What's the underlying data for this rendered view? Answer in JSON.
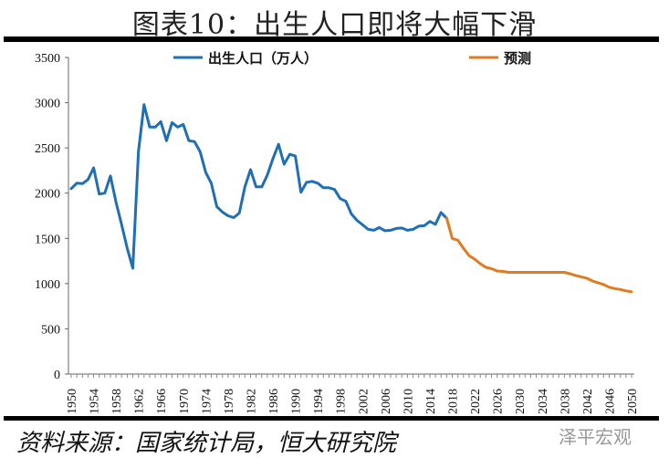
{
  "title": "图表10：出生人口即将大幅下滑",
  "source": "资料来源：国家统计局，恒大研究院",
  "watermark": "泽平宏观",
  "chart_data": {
    "type": "line",
    "title": "图表10：出生人口即将大幅下滑",
    "xlabel": "",
    "ylabel": "",
    "ylim": [
      0,
      3500
    ],
    "yticks": [
      0,
      500,
      1000,
      1500,
      2000,
      2500,
      3000,
      3500
    ],
    "xlim": [
      1950,
      2050
    ],
    "xtick_labels": [
      "1950",
      "1954",
      "1958",
      "1962",
      "1966",
      "1970",
      "1974",
      "1978",
      "1982",
      "1986",
      "1990",
      "1994",
      "1998",
      "2002",
      "2006",
      "2010",
      "2014",
      "2018",
      "2022",
      "2026",
      "2030",
      "2034",
      "2038",
      "2042",
      "2046",
      "2050"
    ],
    "grid": false,
    "legend": "top",
    "series": [
      {
        "name": "出生人口（万人）",
        "color": "#1f6fb4",
        "x": [
          1950,
          1951,
          1952,
          1953,
          1954,
          1955,
          1956,
          1957,
          1958,
          1959,
          1960,
          1961,
          1962,
          1963,
          1964,
          1965,
          1966,
          1967,
          1968,
          1969,
          1970,
          1971,
          1972,
          1973,
          1974,
          1975,
          1976,
          1977,
          1978,
          1979,
          1980,
          1981,
          1982,
          1983,
          1984,
          1985,
          1986,
          1987,
          1988,
          1989,
          1990,
          1991,
          1992,
          1993,
          1994,
          1995,
          1996,
          1997,
          1998,
          1999,
          2000,
          2001,
          2002,
          2003,
          2004,
          2005,
          2006,
          2007,
          2008,
          2009,
          2010,
          2011,
          2012,
          2013,
          2014,
          2015,
          2016,
          2017
        ],
        "values": [
          2050,
          2110,
          2105,
          2150,
          2280,
          1990,
          2000,
          2190,
          1900,
          1650,
          1390,
          1170,
          2460,
          2980,
          2730,
          2730,
          2790,
          2580,
          2780,
          2730,
          2760,
          2580,
          2570,
          2460,
          2230,
          2110,
          1850,
          1790,
          1750,
          1730,
          1780,
          2070,
          2260,
          2070,
          2070,
          2200,
          2380,
          2540,
          2320,
          2430,
          2410,
          2010,
          2120,
          2130,
          2110,
          2060,
          2060,
          2040,
          1940,
          1910,
          1770,
          1700,
          1650,
          1600,
          1590,
          1620,
          1585,
          1590,
          1610,
          1615,
          1590,
          1600,
          1635,
          1640,
          1687,
          1655,
          1786,
          1723
        ]
      },
      {
        "name": "预测",
        "color": "#e07b22",
        "x": [
          2017,
          2018,
          2019,
          2020,
          2021,
          2022,
          2023,
          2024,
          2025,
          2026,
          2027,
          2028,
          2029,
          2030,
          2031,
          2032,
          2033,
          2034,
          2035,
          2036,
          2037,
          2038,
          2039,
          2040,
          2041,
          2042,
          2043,
          2044,
          2045,
          2046,
          2047,
          2048,
          2049,
          2050
        ],
        "values": [
          1723,
          1500,
          1480,
          1390,
          1310,
          1270,
          1220,
          1180,
          1165,
          1140,
          1135,
          1125,
          1125,
          1125,
          1125,
          1125,
          1125,
          1125,
          1125,
          1125,
          1125,
          1125,
          1110,
          1090,
          1075,
          1060,
          1030,
          1010,
          990,
          960,
          945,
          935,
          920,
          910
        ]
      }
    ]
  }
}
